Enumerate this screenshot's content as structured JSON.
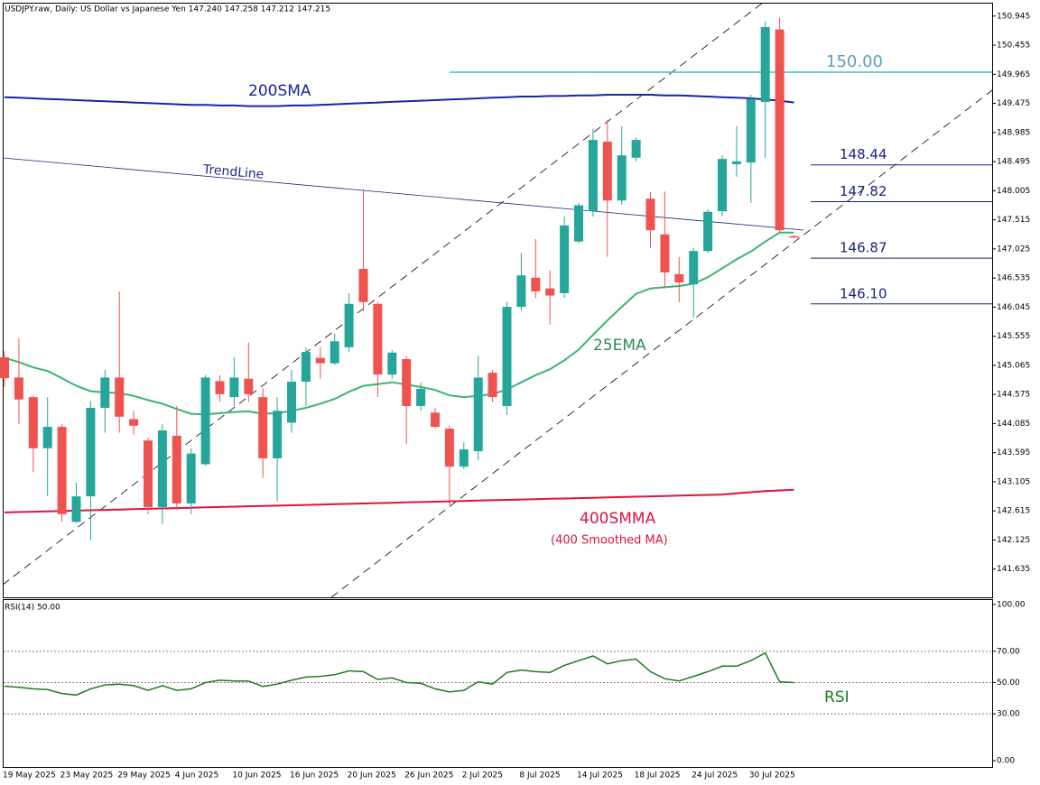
{
  "chart_data": [
    {
      "type": "candlestick",
      "title": "USDJPY.raw, Daily:  US Dollar vs Japanese Yen  147.240 147.258 147.212 147.215",
      "categories": [
        "19 May 2025",
        null,
        null,
        null,
        "23 May 2025",
        null,
        null,
        null,
        "29 May 2025",
        null,
        null,
        null,
        "4 Jun 2025",
        null,
        null,
        null,
        "10 Jun 2025",
        null,
        null,
        null,
        "16 Jun 2025",
        null,
        null,
        null,
        "20 Jun 2025",
        null,
        null,
        null,
        "26 Jun 2025",
        null,
        null,
        null,
        "2 Jul 2025",
        null,
        null,
        null,
        "8 Jul 2025",
        null,
        null,
        null,
        "14 Jul 2025",
        null,
        null,
        null,
        "18 Jul 2025",
        null,
        null,
        null,
        "24 Jul 2025",
        null,
        null,
        null,
        "30 Jul 2025",
        null,
        null,
        null
      ],
      "open": [
        145.2,
        144.86,
        144.53,
        143.67,
        144.03,
        142.43,
        142.86,
        144.35,
        144.86,
        144.16,
        143.8,
        142.68,
        143.88,
        142.74,
        143.4,
        144.8,
        144.53,
        144.84,
        144.53,
        143.5,
        144.1,
        144.79,
        145.19,
        145.1,
        145.37,
        146.69,
        146.1,
        144.91,
        145.17,
        144.38,
        144.27,
        144.0,
        143.36,
        143.62,
        144.94,
        144.38,
        146.05,
        146.54,
        146.36,
        146.28,
        147.15,
        147.66,
        148.83,
        147.84,
        148.56,
        147.87,
        147.27,
        146.6,
        146.43,
        146.99,
        147.66,
        148.45,
        148.48,
        149.5,
        150.72,
        147.24
      ],
      "high": [
        145.3,
        145.52,
        144.55,
        144.53,
        144.08,
        143.09,
        144.46,
        144.99,
        146.31,
        144.3,
        143.85,
        144.08,
        144.38,
        143.67,
        144.9,
        144.9,
        145.2,
        145.45,
        144.68,
        144.53,
        144.99,
        145.37,
        145.37,
        145.6,
        146.28,
        148.03,
        146.13,
        145.32,
        145.22,
        144.77,
        144.35,
        144.05,
        143.77,
        145.22,
        144.99,
        146.13,
        146.96,
        147.19,
        146.66,
        147.57,
        147.8,
        149.05,
        149.2,
        149.09,
        148.9,
        147.98,
        147.99,
        146.89,
        147.04,
        147.69,
        148.6,
        149.09,
        149.62,
        150.85,
        150.92,
        147.258
      ],
      "low": [
        144.7,
        144.08,
        143.27,
        142.86,
        142.43,
        142.41,
        142.13,
        143.93,
        143.93,
        143.9,
        142.56,
        142.4,
        142.63,
        142.56,
        143.37,
        144.45,
        144.38,
        144.45,
        143.17,
        142.78,
        143.93,
        144.38,
        144.84,
        145.07,
        145.29,
        145.98,
        144.53,
        144.84,
        143.74,
        144.3,
        144.0,
        142.71,
        143.32,
        143.47,
        144.45,
        144.23,
        145.98,
        146.2,
        145.75,
        146.2,
        147.12,
        147.57,
        146.89,
        147.77,
        148.5,
        147.04,
        146.36,
        146.13,
        145.87,
        146.96,
        147.57,
        148.24,
        147.8,
        148.56,
        147.3,
        147.212
      ],
      "close": [
        144.85,
        144.49,
        143.67,
        144.03,
        142.56,
        142.86,
        144.35,
        144.86,
        144.2,
        144.05,
        142.68,
        143.97,
        142.74,
        143.58,
        144.86,
        144.58,
        144.86,
        144.58,
        143.5,
        144.3,
        144.79,
        145.29,
        145.1,
        145.47,
        146.1,
        146.13,
        144.91,
        145.28,
        144.38,
        144.67,
        144.03,
        143.36,
        143.65,
        144.86,
        144.53,
        146.05,
        146.58,
        146.31,
        146.24,
        147.42,
        147.76,
        148.86,
        147.84,
        148.6,
        148.86,
        147.34,
        146.63,
        146.46,
        146.99,
        147.65,
        148.54,
        148.5,
        149.55,
        150.76,
        147.34,
        147.215
      ],
      "up_color": "#26a69a",
      "down_color": "#ef5350",
      "series": [
        {
          "name": "200SMA",
          "color": "#1a23a8",
          "values": [
            149.58,
            149.57,
            149.56,
            149.55,
            149.54,
            149.53,
            149.52,
            149.51,
            149.5,
            149.49,
            149.48,
            149.47,
            149.46,
            149.45,
            149.45,
            149.44,
            149.44,
            149.43,
            149.43,
            149.43,
            149.44,
            149.44,
            149.45,
            149.46,
            149.47,
            149.48,
            149.49,
            149.5,
            149.51,
            149.52,
            149.53,
            149.54,
            149.55,
            149.56,
            149.57,
            149.58,
            149.59,
            149.59,
            149.6,
            149.6,
            149.61,
            149.61,
            149.62,
            149.62,
            149.62,
            149.62,
            149.61,
            149.61,
            149.6,
            149.59,
            149.58,
            149.57,
            149.56,
            149.54,
            149.52,
            149.49
          ]
        },
        {
          "name": "25EMA",
          "color": "#3cb371",
          "values": [
            145.19,
            145.12,
            145.03,
            144.97,
            144.85,
            144.72,
            144.63,
            144.61,
            144.6,
            144.55,
            144.48,
            144.42,
            144.33,
            144.25,
            144.24,
            144.26,
            144.28,
            144.29,
            144.25,
            144.26,
            144.3,
            144.35,
            144.42,
            144.5,
            144.62,
            144.72,
            144.75,
            144.78,
            144.74,
            144.7,
            144.65,
            144.56,
            144.53,
            144.55,
            144.58,
            144.66,
            144.78,
            144.9,
            145.0,
            145.15,
            145.33,
            145.58,
            145.82,
            146.05,
            146.27,
            146.36,
            146.38,
            146.4,
            146.44,
            146.55,
            146.7,
            146.85,
            146.98,
            147.15,
            147.3,
            147.3
          ]
        },
        {
          "name": "400SMMA",
          "color": "#dc143c",
          "values": [
            142.59,
            142.596,
            142.602,
            142.608,
            142.614,
            142.62,
            142.626,
            142.632,
            142.638,
            142.644,
            142.65,
            142.656,
            142.662,
            142.668,
            142.674,
            142.68,
            142.686,
            142.692,
            142.698,
            142.704,
            142.71,
            142.716,
            142.722,
            142.728,
            142.734,
            142.74,
            142.746,
            142.752,
            142.758,
            142.764,
            142.77,
            142.776,
            142.782,
            142.788,
            142.794,
            142.8,
            142.806,
            142.812,
            142.818,
            142.824,
            142.83,
            142.836,
            142.842,
            142.848,
            142.854,
            142.86,
            142.866,
            142.872,
            142.878,
            142.884,
            142.89,
            142.91,
            142.93,
            142.95,
            142.96,
            142.97
          ]
        }
      ],
      "annotations": [
        "TrendLine",
        "(400 Smoothed MA)"
      ],
      "levels": [
        {
          "value": 150,
          "label": "150.00"
        },
        148.44,
        147.82,
        146.87,
        {
          "value": 146.1,
          "label": "146.10"
        }
      ],
      "level_colors": [
        "#40c0c0",
        "#1a237e",
        "#1a237e",
        "#1a237e",
        "#1a237e"
      ],
      "ylim": [
        141.16,
        151.17
      ],
      "yticks": [
        150.945,
        150.455,
        149.965,
        149.475,
        148.985,
        148.495,
        148.005,
        147.515,
        147.025,
        146.535,
        146.045,
        145.555,
        145.065,
        144.575,
        144.085,
        143.595,
        143.105,
        142.615,
        142.125,
        141.635
      ]
    },
    {
      "type": "line",
      "title": "RSI(14) 50.00",
      "series": [
        {
          "name": "RSI",
          "color": "#1e7b1e",
          "values": [
            47.7,
            47,
            46,
            45.5,
            43,
            42,
            46,
            48.5,
            49,
            48,
            45,
            48,
            45,
            46,
            50,
            51.5,
            51,
            51,
            47.5,
            49,
            51.5,
            53.5,
            54,
            55,
            57.5,
            57,
            52,
            53,
            50,
            49.5,
            46,
            44,
            45,
            50.5,
            49,
            56.5,
            58,
            57,
            56.5,
            61,
            64,
            67,
            62,
            64,
            65,
            57,
            52.5,
            51,
            54,
            57,
            60.5,
            60.5,
            64,
            69,
            50.5,
            50
          ]
        }
      ],
      "levels": [
        70,
        50,
        30
      ],
      "ylim": [
        -4,
        103.4
      ],
      "yticks": [
        {
          "value": 100,
          "label": "100.00"
        },
        {
          "value": 70,
          "label": "70.00"
        },
        {
          "value": 50,
          "label": "50.00"
        },
        {
          "value": 30,
          "label": "30.00"
        },
        {
          "value": 0,
          "label": "0.00"
        }
      ]
    }
  ]
}
